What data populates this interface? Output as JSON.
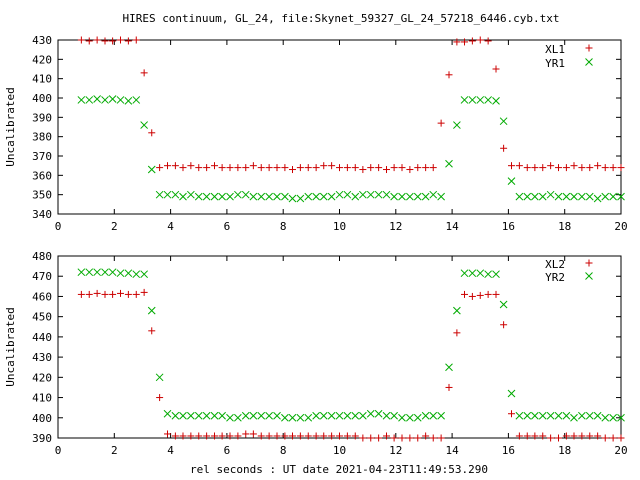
{
  "chart_data": [
    {
      "type": "scatter",
      "title": "HIRES continuum, GL_24, file:Skynet_59327_GL_24_57218_6446.cyb.txt",
      "xlabel": "",
      "ylabel": "Uncalibrated",
      "xlim": [
        0,
        20
      ],
      "ylim": [
        340,
        430
      ],
      "xticks": [
        0,
        2,
        4,
        6,
        8,
        10,
        12,
        14,
        16,
        18,
        20
      ],
      "yticks": [
        340,
        350,
        360,
        370,
        380,
        390,
        400,
        410,
        420,
        430
      ],
      "grid": false,
      "legend": "top-right",
      "x": [
        0.83,
        1.11,
        1.39,
        1.67,
        1.94,
        2.22,
        2.5,
        2.78,
        3.06,
        3.33,
        3.61,
        3.89,
        4.17,
        4.44,
        4.72,
        5.0,
        5.28,
        5.56,
        5.83,
        6.11,
        6.39,
        6.67,
        6.94,
        7.22,
        7.5,
        7.78,
        8.06,
        8.33,
        8.61,
        8.89,
        9.17,
        9.44,
        9.72,
        10.0,
        10.28,
        10.56,
        10.83,
        11.11,
        11.39,
        11.67,
        11.94,
        12.22,
        12.5,
        12.78,
        13.06,
        13.33,
        13.61,
        13.89,
        14.17,
        14.44,
        14.72,
        15.0,
        15.28,
        15.56,
        15.83,
        16.11,
        16.39,
        16.67,
        16.94,
        17.22,
        17.5,
        17.78,
        18.06,
        18.33,
        18.61,
        18.89,
        19.17,
        19.44,
        19.72,
        20.0
      ],
      "series": [
        {
          "name": "XL1",
          "marker": "plus",
          "color": "#cc0000",
          "values": [
            430,
            429.5,
            430,
            429.5,
            429.5,
            430,
            429.5,
            430,
            413,
            382,
            364,
            365,
            365,
            364,
            365,
            364,
            364,
            365,
            364,
            364,
            364,
            364,
            365,
            364,
            364,
            364,
            364,
            363,
            364,
            364,
            364,
            365,
            365,
            364,
            364,
            364,
            363,
            364,
            364,
            363,
            364,
            364,
            363,
            364,
            364,
            364,
            387,
            412,
            429,
            429,
            429.5,
            430,
            429.5,
            415,
            374,
            365,
            365,
            364,
            364,
            364,
            365,
            364,
            364,
            365,
            364,
            364,
            365,
            364,
            364,
            364
          ]
        },
        {
          "name": "YR1",
          "marker": "x",
          "color": "#00aa00",
          "values": [
            399,
            399,
            399.5,
            399,
            399.5,
            399,
            398.5,
            399,
            386,
            363,
            350,
            350,
            350,
            349,
            350,
            349,
            349,
            349,
            349,
            349,
            350,
            350,
            349,
            349,
            349,
            349,
            349,
            348,
            348,
            349,
            349,
            349,
            349,
            350,
            350,
            349,
            350,
            350,
            350,
            350,
            349,
            349,
            349,
            349,
            349,
            350,
            349,
            366,
            386,
            399,
            399,
            399,
            399,
            398.5,
            388,
            357,
            349,
            349,
            349,
            349,
            350,
            349,
            349,
            349,
            349,
            349,
            348,
            349,
            349,
            349
          ]
        }
      ]
    },
    {
      "type": "scatter",
      "title": "",
      "xlabel": "rel seconds : UT date 2021-04-23T11:49:53.290",
      "ylabel": "Uncalibrated",
      "xlim": [
        0,
        20
      ],
      "ylim": [
        390,
        480
      ],
      "xticks": [
        0,
        2,
        4,
        6,
        8,
        10,
        12,
        14,
        16,
        18,
        20
      ],
      "yticks": [
        390,
        400,
        410,
        420,
        430,
        440,
        450,
        460,
        470,
        480
      ],
      "grid": false,
      "legend": "top-right",
      "x": [
        0.83,
        1.11,
        1.39,
        1.67,
        1.94,
        2.22,
        2.5,
        2.78,
        3.06,
        3.33,
        3.61,
        3.89,
        4.17,
        4.44,
        4.72,
        5.0,
        5.28,
        5.56,
        5.83,
        6.11,
        6.39,
        6.67,
        6.94,
        7.22,
        7.5,
        7.78,
        8.06,
        8.33,
        8.61,
        8.89,
        9.17,
        9.44,
        9.72,
        10.0,
        10.28,
        10.56,
        10.83,
        11.11,
        11.39,
        11.67,
        11.94,
        12.22,
        12.5,
        12.78,
        13.06,
        13.33,
        13.61,
        13.89,
        14.17,
        14.44,
        14.72,
        15.0,
        15.28,
        15.56,
        15.83,
        16.11,
        16.39,
        16.67,
        16.94,
        17.22,
        17.5,
        17.78,
        18.06,
        18.33,
        18.61,
        18.89,
        19.17,
        19.44,
        19.72,
        20.0
      ],
      "series": [
        {
          "name": "XL2",
          "marker": "plus",
          "color": "#cc0000",
          "values": [
            461,
            461,
            461.5,
            461,
            461,
            461.5,
            461,
            461,
            462,
            443,
            410,
            392,
            391,
            391,
            391,
            391,
            391,
            391,
            391,
            391,
            391,
            392,
            392,
            391,
            391,
            391,
            391,
            391,
            391,
            391,
            391,
            391,
            391,
            391,
            391,
            391,
            390,
            390,
            390,
            391,
            390,
            390,
            390,
            390,
            391,
            390,
            390,
            415,
            442,
            461,
            460,
            460.5,
            461,
            461,
            446,
            402,
            391,
            391,
            391,
            391,
            390,
            390,
            391,
            391,
            391,
            391,
            391,
            390,
            390,
            390
          ]
        },
        {
          "name": "YR2",
          "marker": "x",
          "color": "#00aa00",
          "values": [
            472,
            472,
            472,
            472,
            472,
            471.5,
            471.5,
            471,
            471,
            453,
            420,
            402,
            401,
            401,
            401,
            401,
            401,
            401,
            401,
            400,
            400,
            401,
            401,
            401,
            401,
            401,
            400,
            400,
            400,
            400,
            401,
            401,
            401,
            401,
            401,
            401,
            401,
            402,
            402,
            401,
            401,
            400,
            400,
            400,
            401,
            401,
            401,
            425,
            453,
            471.5,
            471.5,
            471.5,
            471,
            471,
            456,
            412,
            401,
            401,
            401,
            401,
            401,
            401,
            401,
            400,
            401,
            401,
            401,
            400,
            400,
            400
          ]
        }
      ]
    }
  ]
}
